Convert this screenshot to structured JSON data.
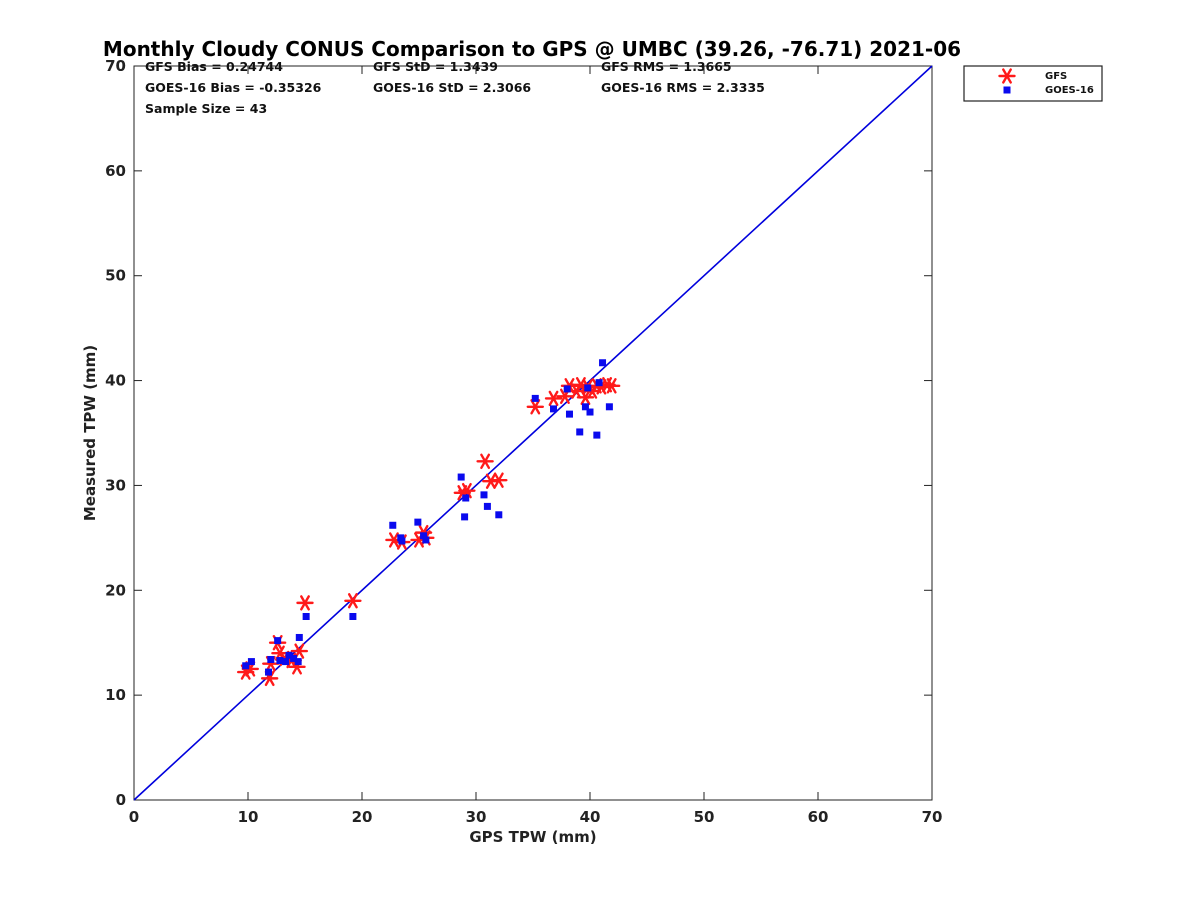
{
  "chart_data": {
    "type": "scatter",
    "title": "Monthly Cloudy CONUS Comparison to GPS @ UMBC (39.26, -76.71) 2021-06",
    "xlabel": "GPS TPW (mm)",
    "ylabel": "Measured TPW (mm)",
    "xlim": [
      0,
      70
    ],
    "ylim": [
      0,
      70
    ],
    "xticks": [
      0,
      10,
      20,
      30,
      40,
      50,
      60,
      70
    ],
    "yticks": [
      0,
      10,
      20,
      30,
      40,
      50,
      60,
      70
    ],
    "grid": false,
    "legend_position": "outside-top-right",
    "reference_line": {
      "name": "1:1",
      "color": "#0000dd"
    },
    "stats": [
      [
        "GFS Bias = 0.24744",
        "GFS StD = 1.3439",
        "GFS RMS = 1.3665"
      ],
      [
        "GOES-16 Bias = -0.35326",
        "GOES-16 StD = 2.3066",
        "GOES-16 RMS = 2.3335"
      ],
      [
        "Sample Size = 43"
      ]
    ],
    "series": [
      {
        "name": "GFS",
        "marker": "asterisk",
        "color": "#ff1a1a",
        "points": [
          [
            9.8,
            12.2
          ],
          [
            10.2,
            12.5
          ],
          [
            11.9,
            11.6
          ],
          [
            12.0,
            13.0
          ],
          [
            12.6,
            15.0
          ],
          [
            12.8,
            14.0
          ],
          [
            13.2,
            13.5
          ],
          [
            13.8,
            13.3
          ],
          [
            14.3,
            12.7
          ],
          [
            14.5,
            14.2
          ],
          [
            15.0,
            18.8
          ],
          [
            19.2,
            19.0
          ],
          [
            22.8,
            24.8
          ],
          [
            23.5,
            24.6
          ],
          [
            25.0,
            24.8
          ],
          [
            25.4,
            25.5
          ],
          [
            25.6,
            25.0
          ],
          [
            28.8,
            29.3
          ],
          [
            29.2,
            29.5
          ],
          [
            30.8,
            32.3
          ],
          [
            31.3,
            30.4
          ],
          [
            32.0,
            30.5
          ],
          [
            35.2,
            37.5
          ],
          [
            36.8,
            38.3
          ],
          [
            37.8,
            38.5
          ],
          [
            38.2,
            39.5
          ],
          [
            38.8,
            39.0
          ],
          [
            39.2,
            39.6
          ],
          [
            39.6,
            38.4
          ],
          [
            39.8,
            39.4
          ],
          [
            40.2,
            39.0
          ],
          [
            40.6,
            39.5
          ],
          [
            41.0,
            39.4
          ],
          [
            41.5,
            39.6
          ],
          [
            41.9,
            39.5
          ]
        ]
      },
      {
        "name": "GOES-16",
        "marker": "square",
        "color": "#0a0aee",
        "points": [
          [
            9.8,
            12.8
          ],
          [
            10.3,
            13.2
          ],
          [
            11.8,
            12.2
          ],
          [
            12.0,
            13.4
          ],
          [
            12.6,
            15.2
          ],
          [
            12.8,
            13.3
          ],
          [
            13.3,
            13.2
          ],
          [
            13.6,
            13.8
          ],
          [
            14.0,
            13.5
          ],
          [
            14.4,
            13.2
          ],
          [
            14.5,
            15.5
          ],
          [
            15.1,
            17.5
          ],
          [
            19.2,
            17.5
          ],
          [
            22.7,
            26.2
          ],
          [
            23.4,
            25.0
          ],
          [
            23.5,
            24.7
          ],
          [
            24.9,
            26.5
          ],
          [
            25.4,
            25.2
          ],
          [
            25.6,
            24.8
          ],
          [
            28.7,
            30.8
          ],
          [
            29.0,
            27.0
          ],
          [
            29.1,
            28.8
          ],
          [
            30.7,
            29.1
          ],
          [
            31.0,
            28.0
          ],
          [
            32.0,
            27.2
          ],
          [
            35.2,
            38.3
          ],
          [
            36.8,
            37.3
          ],
          [
            38.0,
            39.2
          ],
          [
            38.2,
            36.8
          ],
          [
            39.1,
            35.1
          ],
          [
            39.6,
            37.5
          ],
          [
            39.8,
            39.3
          ],
          [
            40.0,
            37.0
          ],
          [
            40.6,
            34.8
          ],
          [
            40.8,
            39.8
          ],
          [
            41.1,
            41.7
          ],
          [
            41.7,
            37.5
          ]
        ]
      }
    ]
  }
}
